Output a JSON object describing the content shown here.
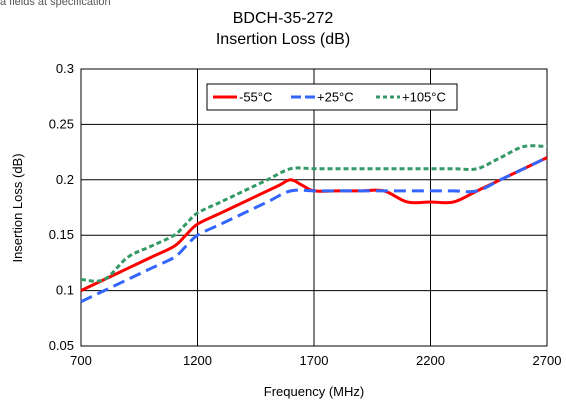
{
  "header": {
    "fragment": "a fields at specification"
  },
  "chart_data": {
    "type": "line",
    "title": "BDCH-35-272",
    "subtitle": "Insertion Loss (dB)",
    "xlabel": "Frequency (MHz)",
    "ylabel": "Insertion Loss (dB)",
    "xlim": [
      700,
      2700
    ],
    "ylim": [
      0.05,
      0.3
    ],
    "x_ticks": [
      "700",
      "1200",
      "1700",
      "2200",
      "2700"
    ],
    "y_ticks": [
      "0.05",
      "0.1",
      "0.15",
      "0.2",
      "0.25",
      "0.3"
    ],
    "grid": true,
    "legend_position": "top-right",
    "series": [
      {
        "name": "-55°C",
        "color": "#ff0000",
        "style": "solid",
        "x": [
          700,
          800,
          900,
          1000,
          1100,
          1150,
          1200,
          1300,
          1400,
          1500,
          1550,
          1600,
          1650,
          1700,
          1800,
          1900,
          2000,
          2100,
          2200,
          2300,
          2400,
          2500,
          2600,
          2700
        ],
        "y": [
          0.1,
          0.11,
          0.12,
          0.13,
          0.14,
          0.15,
          0.16,
          0.17,
          0.18,
          0.19,
          0.195,
          0.2,
          0.195,
          0.19,
          0.19,
          0.19,
          0.19,
          0.18,
          0.18,
          0.18,
          0.19,
          0.2,
          0.21,
          0.22
        ]
      },
      {
        "name": "+25°C",
        "color": "#3366ff",
        "style": "dash",
        "x": [
          700,
          800,
          900,
          1000,
          1100,
          1150,
          1200,
          1300,
          1400,
          1500,
          1600,
          1700,
          1800,
          1900,
          2000,
          2100,
          2200,
          2300,
          2400,
          2500,
          2600,
          2700
        ],
        "y": [
          0.09,
          0.1,
          0.11,
          0.12,
          0.13,
          0.14,
          0.15,
          0.16,
          0.17,
          0.18,
          0.19,
          0.19,
          0.19,
          0.19,
          0.19,
          0.19,
          0.19,
          0.19,
          0.19,
          0.2,
          0.21,
          0.22
        ]
      },
      {
        "name": "+105°C",
        "color": "#339966",
        "style": "dot",
        "x": [
          700,
          800,
          900,
          1000,
          1100,
          1150,
          1200,
          1300,
          1400,
          1500,
          1600,
          1700,
          1800,
          1900,
          2000,
          2100,
          2200,
          2300,
          2400,
          2500,
          2600,
          2700
        ],
        "y": [
          0.11,
          0.11,
          0.13,
          0.14,
          0.15,
          0.16,
          0.17,
          0.18,
          0.19,
          0.2,
          0.21,
          0.21,
          0.21,
          0.21,
          0.21,
          0.21,
          0.21,
          0.21,
          0.21,
          0.22,
          0.23,
          0.23
        ]
      }
    ]
  }
}
